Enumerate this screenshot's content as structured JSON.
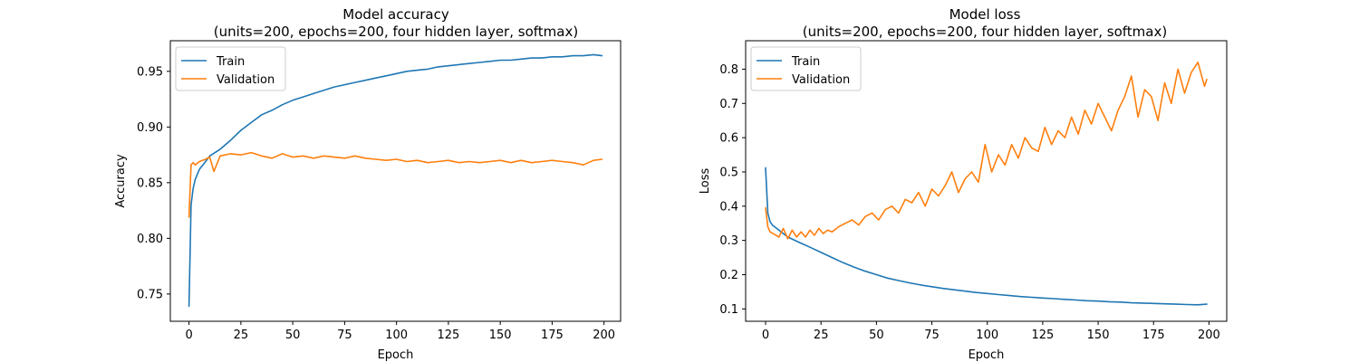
{
  "colors": {
    "train": "#1f77b4",
    "validation": "#ff7f0e"
  },
  "chart_data": [
    {
      "type": "line",
      "title_line1": "Model accuracy",
      "title_line2": "(units=200, epochs=200, four hidden layer, softmax)",
      "xlabel": "Epoch",
      "ylabel": "Accuracy",
      "xlim": [
        -9,
        208
      ],
      "ylim": [
        0.7255,
        0.9775
      ],
      "xticks": [
        0,
        25,
        50,
        75,
        100,
        125,
        150,
        175,
        200
      ],
      "xtick_labels": [
        "0",
        "25",
        "50",
        "75",
        "100",
        "125",
        "150",
        "175",
        "200"
      ],
      "yticks": [
        0.75,
        0.8,
        0.85,
        0.9,
        0.95
      ],
      "ytick_labels": [
        "0.75",
        "0.80",
        "0.85",
        "0.90",
        "0.95"
      ],
      "grid": false,
      "legend": "top-left",
      "series": [
        {
          "name": "Train",
          "color_key": "train",
          "x": [
            0,
            1,
            2,
            3,
            5,
            8,
            10,
            15,
            20,
            25,
            30,
            35,
            40,
            45,
            50,
            55,
            60,
            65,
            70,
            75,
            80,
            85,
            90,
            95,
            100,
            105,
            110,
            115,
            120,
            125,
            130,
            135,
            140,
            145,
            150,
            155,
            160,
            165,
            170,
            175,
            180,
            185,
            190,
            195,
            199
          ],
          "y": [
            0.739,
            0.83,
            0.845,
            0.853,
            0.862,
            0.869,
            0.874,
            0.88,
            0.888,
            0.897,
            0.904,
            0.911,
            0.915,
            0.92,
            0.924,
            0.927,
            0.93,
            0.933,
            0.936,
            0.938,
            0.94,
            0.942,
            0.944,
            0.946,
            0.948,
            0.95,
            0.951,
            0.952,
            0.954,
            0.955,
            0.956,
            0.957,
            0.958,
            0.959,
            0.96,
            0.96,
            0.961,
            0.962,
            0.962,
            0.963,
            0.963,
            0.964,
            0.964,
            0.965,
            0.964
          ]
        },
        {
          "name": "Validation",
          "color_key": "validation",
          "x": [
            0,
            1,
            2,
            3,
            5,
            8,
            10,
            12,
            15,
            20,
            25,
            30,
            35,
            40,
            45,
            50,
            55,
            60,
            65,
            70,
            75,
            80,
            85,
            90,
            95,
            100,
            105,
            110,
            115,
            120,
            125,
            130,
            135,
            140,
            145,
            150,
            155,
            160,
            165,
            170,
            175,
            180,
            185,
            190,
            195,
            199
          ],
          "y": [
            0.819,
            0.866,
            0.868,
            0.866,
            0.869,
            0.871,
            0.873,
            0.86,
            0.874,
            0.876,
            0.875,
            0.877,
            0.874,
            0.872,
            0.876,
            0.873,
            0.874,
            0.872,
            0.874,
            0.873,
            0.872,
            0.874,
            0.872,
            0.871,
            0.87,
            0.871,
            0.869,
            0.87,
            0.868,
            0.869,
            0.87,
            0.868,
            0.869,
            0.868,
            0.869,
            0.87,
            0.868,
            0.87,
            0.868,
            0.869,
            0.87,
            0.869,
            0.868,
            0.866,
            0.87,
            0.871
          ]
        }
      ]
    },
    {
      "type": "line",
      "title_line1": "Model loss",
      "title_line2": "(units=200, epochs=200, four hidden layer, softmax)",
      "xlabel": "Epoch",
      "ylabel": "Loss",
      "xlim": [
        -9,
        208
      ],
      "ylim": [
        0.064,
        0.883
      ],
      "xticks": [
        0,
        25,
        50,
        75,
        100,
        125,
        150,
        175,
        200
      ],
      "xtick_labels": [
        "0",
        "25",
        "50",
        "75",
        "100",
        "125",
        "150",
        "175",
        "200"
      ],
      "yticks": [
        0.1,
        0.2,
        0.3,
        0.4,
        0.5,
        0.6,
        0.7,
        0.8
      ],
      "ytick_labels": [
        "0.1",
        "0.2",
        "0.3",
        "0.4",
        "0.5",
        "0.6",
        "0.7",
        "0.8"
      ],
      "grid": false,
      "legend": "top-left",
      "series": [
        {
          "name": "Train",
          "color_key": "train",
          "x": [
            0,
            1,
            2,
            3,
            5,
            8,
            10,
            15,
            20,
            25,
            30,
            35,
            40,
            45,
            50,
            55,
            60,
            65,
            70,
            75,
            80,
            85,
            90,
            95,
            100,
            105,
            110,
            115,
            120,
            125,
            130,
            135,
            140,
            145,
            150,
            155,
            160,
            165,
            170,
            175,
            180,
            185,
            190,
            195,
            199
          ],
          "y": [
            0.512,
            0.38,
            0.355,
            0.345,
            0.335,
            0.32,
            0.31,
            0.295,
            0.28,
            0.265,
            0.25,
            0.235,
            0.222,
            0.21,
            0.2,
            0.19,
            0.183,
            0.176,
            0.17,
            0.165,
            0.16,
            0.156,
            0.152,
            0.148,
            0.145,
            0.142,
            0.139,
            0.136,
            0.134,
            0.132,
            0.13,
            0.128,
            0.126,
            0.124,
            0.123,
            0.121,
            0.12,
            0.118,
            0.117,
            0.116,
            0.115,
            0.114,
            0.113,
            0.112,
            0.114
          ]
        },
        {
          "name": "Validation",
          "color_key": "validation",
          "x": [
            0,
            1,
            2,
            4,
            6,
            8,
            10,
            12,
            14,
            16,
            18,
            20,
            22,
            24,
            26,
            28,
            30,
            33,
            36,
            39,
            42,
            45,
            48,
            51,
            54,
            57,
            60,
            63,
            66,
            69,
            72,
            75,
            78,
            81,
            84,
            87,
            90,
            93,
            96,
            99,
            102,
            105,
            108,
            111,
            114,
            117,
            120,
            123,
            126,
            129,
            132,
            135,
            138,
            141,
            144,
            147,
            150,
            153,
            156,
            159,
            162,
            165,
            168,
            171,
            174,
            177,
            180,
            183,
            186,
            189,
            192,
            195,
            198,
            199
          ],
          "y": [
            0.395,
            0.34,
            0.325,
            0.318,
            0.31,
            0.335,
            0.305,
            0.33,
            0.31,
            0.325,
            0.31,
            0.33,
            0.315,
            0.335,
            0.32,
            0.33,
            0.325,
            0.34,
            0.35,
            0.36,
            0.345,
            0.37,
            0.38,
            0.36,
            0.39,
            0.4,
            0.38,
            0.42,
            0.41,
            0.44,
            0.4,
            0.45,
            0.43,
            0.46,
            0.5,
            0.44,
            0.48,
            0.5,
            0.47,
            0.58,
            0.5,
            0.55,
            0.52,
            0.58,
            0.54,
            0.6,
            0.57,
            0.56,
            0.63,
            0.58,
            0.62,
            0.6,
            0.66,
            0.61,
            0.68,
            0.64,
            0.7,
            0.66,
            0.62,
            0.68,
            0.72,
            0.78,
            0.66,
            0.74,
            0.72,
            0.65,
            0.76,
            0.7,
            0.8,
            0.73,
            0.79,
            0.82,
            0.75,
            0.77
          ]
        }
      ]
    }
  ]
}
